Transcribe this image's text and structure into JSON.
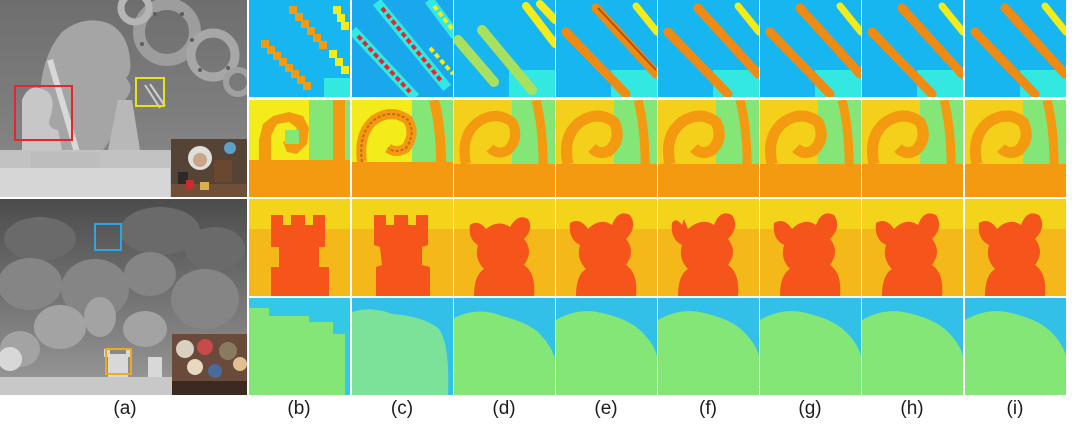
{
  "figure": {
    "labels": [
      "(a)",
      "(b)",
      "(c)",
      "(d)",
      "(e)",
      "(f)",
      "(g)",
      "(h)",
      "(i)"
    ]
  },
  "colors": {
    "depth_blue": "#18b6f0",
    "depth_cyan": "#33e8e0",
    "depth_yellow": "#f4ec1a",
    "depth_orange": "#f49a10",
    "depth_orange_dark": "#ef8a12",
    "depth_red_orange": "#f5541a",
    "depth_green": "#83e677",
    "box_red": "#e6262e",
    "box_yellow": "#e8e21a",
    "box_blue": "#2aa7e0",
    "box_orange": "#f2a81e"
  }
}
